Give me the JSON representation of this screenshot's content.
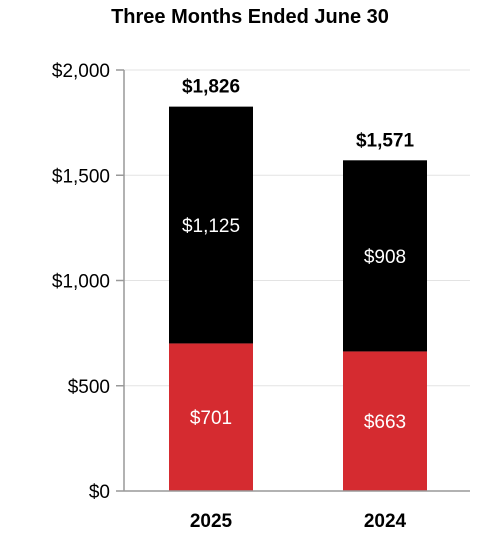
{
  "chart_data": {
    "type": "bar",
    "stacked": true,
    "title": "Three Months Ended June 30",
    "xlabel": "",
    "ylabel": "",
    "categories": [
      "2025",
      "2024"
    ],
    "ylim": [
      0,
      2000
    ],
    "yticks": [
      0,
      500,
      1000,
      1500,
      2000
    ],
    "ytick_labels": [
      "$0",
      "$500",
      "$1,000",
      "$1,500",
      "$2,000"
    ],
    "grid": true,
    "series": [
      {
        "values": [
          701,
          663
        ],
        "labels": [
          "$701",
          "$663"
        ],
        "color": "#d52b30",
        "label_color": "#ffffff"
      },
      {
        "values": [
          1125,
          908
        ],
        "labels": [
          "$1,125",
          "$908"
        ],
        "color": "#000000",
        "label_color": "#ffffff"
      }
    ],
    "totals": [
      1826,
      1571
    ],
    "total_labels": [
      "$1,826",
      "$1,571"
    ]
  }
}
